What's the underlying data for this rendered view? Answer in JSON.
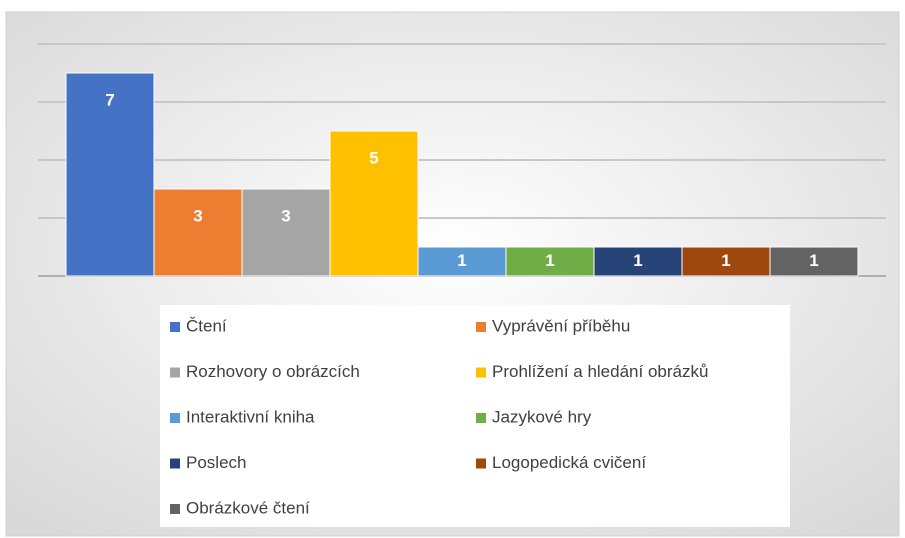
{
  "chart_data": {
    "type": "bar",
    "series": [
      {
        "name": "Čtení",
        "color": "#4472c4",
        "values": [
          7
        ]
      },
      {
        "name": "Vyprávění příběhu",
        "color": "#ed7d31",
        "values": [
          3
        ]
      },
      {
        "name": "Rozhovory o obrázcích",
        "color": "#a5a5a5",
        "values": [
          3
        ]
      },
      {
        "name": "Prohlížení a hledání obrázků",
        "color": "#ffc000",
        "values": [
          5
        ]
      },
      {
        "name": "Interaktivní kniha",
        "color": "#5b9bd5",
        "values": [
          1
        ]
      },
      {
        "name": "Jazykové hry",
        "color": "#70ad47",
        "values": [
          1
        ]
      },
      {
        "name": "Poslech",
        "color": "#264478",
        "values": [
          1
        ]
      },
      {
        "name": "Logopedická cvičení",
        "color": "#9e480e",
        "values": [
          1
        ]
      },
      {
        "name": "Obrázkové čtení",
        "color": "#636363",
        "values": [
          1
        ]
      }
    ],
    "ylim": [
      0,
      8
    ],
    "yticks": [
      0,
      2,
      4,
      6,
      8
    ],
    "grid": true,
    "legend": "bottom"
  }
}
